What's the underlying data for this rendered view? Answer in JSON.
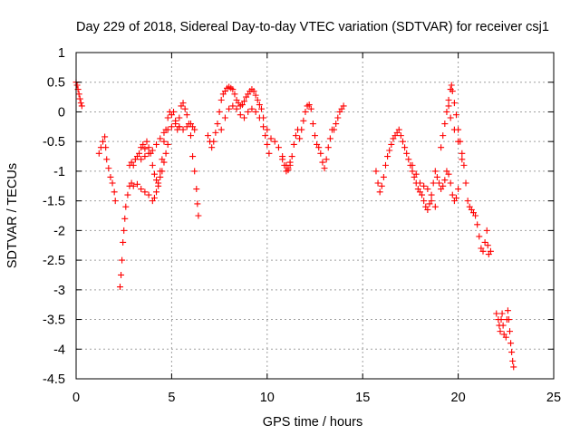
{
  "chart_data": {
    "type": "scatter",
    "title": "Day 229 of 2018, Sidereal Day-to-day VTEC variation (SDTVAR) for receiver csj1",
    "xlabel": "GPS time / hours",
    "ylabel": "SDTVAR / TECUs",
    "xlim": [
      0,
      25
    ],
    "ylim": [
      -4.5,
      1
    ],
    "xticks": [
      "0",
      "5",
      "10",
      "15",
      "20",
      "25"
    ],
    "yticks": [
      "1",
      "0.5",
      "0",
      "-0.5",
      "-1",
      "-1.5",
      "-2",
      "-2.5",
      "-3",
      "-3.5",
      "-4",
      "-4.5"
    ],
    "grid": true,
    "marker": "+",
    "color": "#ff0000",
    "series": [
      {
        "name": "SDTVAR",
        "points": [
          [
            0.0,
            0.5
          ],
          [
            0.05,
            0.45
          ],
          [
            0.1,
            0.38
          ],
          [
            0.15,
            0.3
          ],
          [
            0.2,
            0.22
          ],
          [
            0.25,
            0.15
          ],
          [
            0.3,
            0.1
          ],
          [
            1.2,
            -0.7
          ],
          [
            1.3,
            -0.6
          ],
          [
            1.4,
            -0.5
          ],
          [
            1.5,
            -0.42
          ],
          [
            1.55,
            -0.6
          ],
          [
            1.6,
            -0.8
          ],
          [
            1.7,
            -0.95
          ],
          [
            1.8,
            -1.1
          ],
          [
            1.9,
            -1.2
          ],
          [
            2.0,
            -1.35
          ],
          [
            2.05,
            -1.5
          ],
          [
            2.3,
            -2.95
          ],
          [
            2.35,
            -2.75
          ],
          [
            2.4,
            -2.5
          ],
          [
            2.45,
            -2.2
          ],
          [
            2.5,
            -2.0
          ],
          [
            2.55,
            -1.8
          ],
          [
            2.6,
            -1.6
          ],
          [
            2.7,
            -1.4
          ],
          [
            2.8,
            -1.25
          ],
          [
            2.9,
            -1.2
          ],
          [
            3.0,
            -1.25
          ],
          [
            3.2,
            -1.22
          ],
          [
            3.4,
            -1.3
          ],
          [
            3.6,
            -1.35
          ],
          [
            3.8,
            -1.4
          ],
          [
            4.0,
            -1.5
          ],
          [
            4.1,
            -1.45
          ],
          [
            4.2,
            -1.35
          ],
          [
            4.3,
            -1.25
          ],
          [
            4.4,
            -1.1
          ],
          [
            4.5,
            -1.0
          ],
          [
            4.6,
            -0.85
          ],
          [
            4.7,
            -0.7
          ],
          [
            4.8,
            -0.55
          ],
          [
            2.8,
            -0.9
          ],
          [
            2.9,
            -0.85
          ],
          [
            3.0,
            -0.9
          ],
          [
            3.1,
            -0.8
          ],
          [
            3.2,
            -0.75
          ],
          [
            3.3,
            -0.7
          ],
          [
            3.4,
            -0.6
          ],
          [
            3.5,
            -0.55
          ],
          [
            3.6,
            -0.62
          ],
          [
            3.7,
            -0.5
          ],
          [
            3.8,
            -0.6
          ],
          [
            3.9,
            -0.7
          ],
          [
            4.0,
            -0.9
          ],
          [
            4.1,
            -1.05
          ],
          [
            4.2,
            -1.15
          ],
          [
            4.3,
            -1.2
          ],
          [
            4.4,
            -1.0
          ],
          [
            4.5,
            -0.8
          ],
          [
            4.6,
            -0.5
          ],
          [
            4.7,
            -0.3
          ],
          [
            4.8,
            -0.1
          ],
          [
            4.9,
            0.0
          ],
          [
            5.0,
            -0.05
          ],
          [
            5.1,
            0.0
          ],
          [
            5.2,
            -0.15
          ],
          [
            5.3,
            -0.3
          ],
          [
            5.4,
            -0.25
          ],
          [
            3.4,
            -0.8
          ],
          [
            3.6,
            -0.75
          ],
          [
            3.8,
            -0.7
          ],
          [
            4.0,
            -0.65
          ],
          [
            4.2,
            -0.55
          ],
          [
            4.4,
            -0.45
          ],
          [
            4.6,
            -0.35
          ],
          [
            4.8,
            -0.3
          ],
          [
            5.0,
            -0.25
          ],
          [
            5.2,
            -0.2
          ],
          [
            5.4,
            -0.25
          ],
          [
            5.6,
            -0.3
          ],
          [
            5.8,
            -0.25
          ],
          [
            6.0,
            -0.2
          ],
          [
            6.1,
            -0.25
          ],
          [
            6.2,
            -0.3
          ],
          [
            5.4,
            -0.1
          ],
          [
            5.5,
            0.1
          ],
          [
            5.6,
            0.15
          ],
          [
            5.7,
            0.05
          ],
          [
            5.8,
            -0.05
          ],
          [
            5.9,
            -0.2
          ],
          [
            6.0,
            -0.4
          ],
          [
            6.1,
            -0.75
          ],
          [
            6.2,
            -1.0
          ],
          [
            6.3,
            -1.3
          ],
          [
            6.35,
            -1.55
          ],
          [
            6.4,
            -1.75
          ],
          [
            6.9,
            -0.4
          ],
          [
            7.0,
            -0.5
          ],
          [
            7.1,
            -0.6
          ],
          [
            7.2,
            -0.5
          ],
          [
            7.3,
            -0.35
          ],
          [
            7.4,
            -0.2
          ],
          [
            7.5,
            0.0
          ],
          [
            7.6,
            0.2
          ],
          [
            7.7,
            0.3
          ],
          [
            7.8,
            0.35
          ],
          [
            7.9,
            0.4
          ],
          [
            8.0,
            0.42
          ],
          [
            8.1,
            0.4
          ],
          [
            8.2,
            0.38
          ],
          [
            8.3,
            0.3
          ],
          [
            8.4,
            0.2
          ],
          [
            8.5,
            0.15
          ],
          [
            8.6,
            0.1
          ],
          [
            8.7,
            0.12
          ],
          [
            8.8,
            0.18
          ],
          [
            8.9,
            0.25
          ],
          [
            9.0,
            0.3
          ],
          [
            9.1,
            0.35
          ],
          [
            9.2,
            0.38
          ],
          [
            9.3,
            0.35
          ],
          [
            9.4,
            0.28
          ],
          [
            9.5,
            0.2
          ],
          [
            9.6,
            0.12
          ],
          [
            9.7,
            0.05
          ],
          [
            7.6,
            -0.3
          ],
          [
            7.8,
            -0.1
          ],
          [
            8.0,
            0.05
          ],
          [
            8.2,
            0.1
          ],
          [
            8.4,
            0.05
          ],
          [
            8.6,
            -0.05
          ],
          [
            8.8,
            -0.1
          ],
          [
            9.0,
            0.0
          ],
          [
            9.2,
            0.05
          ],
          [
            9.4,
            0.0
          ],
          [
            9.6,
            -0.1
          ],
          [
            9.8,
            -0.25
          ],
          [
            9.9,
            -0.4
          ],
          [
            10.0,
            -0.55
          ],
          [
            10.1,
            -0.7
          ],
          [
            9.8,
            -0.1
          ],
          [
            10.0,
            -0.3
          ],
          [
            10.2,
            -0.45
          ],
          [
            10.4,
            -0.5
          ],
          [
            10.6,
            -0.6
          ],
          [
            10.8,
            -0.75
          ],
          [
            11.0,
            -0.9
          ],
          [
            11.1,
            -0.98
          ],
          [
            11.2,
            -0.9
          ],
          [
            11.3,
            -0.75
          ],
          [
            11.4,
            -0.55
          ],
          [
            11.5,
            -0.4
          ],
          [
            11.6,
            -0.3
          ],
          [
            11.7,
            -0.45
          ],
          [
            11.8,
            -0.3
          ],
          [
            11.9,
            -0.15
          ],
          [
            12.0,
            0.0
          ],
          [
            12.1,
            0.1
          ],
          [
            12.2,
            0.12
          ],
          [
            12.3,
            0.05
          ],
          [
            10.8,
            -0.8
          ],
          [
            10.9,
            -0.9
          ],
          [
            11.0,
            -1.0
          ],
          [
            11.1,
            -0.95
          ],
          [
            11.2,
            -0.85
          ],
          [
            12.4,
            -0.2
          ],
          [
            12.5,
            -0.4
          ],
          [
            12.6,
            -0.55
          ],
          [
            12.7,
            -0.6
          ],
          [
            12.8,
            -0.7
          ],
          [
            12.9,
            -0.85
          ],
          [
            13.0,
            -0.95
          ],
          [
            13.1,
            -0.8
          ],
          [
            13.2,
            -0.6
          ],
          [
            13.3,
            -0.45
          ],
          [
            13.4,
            -0.3
          ],
          [
            13.5,
            -0.3
          ],
          [
            13.6,
            -0.2
          ],
          [
            13.7,
            -0.1
          ],
          [
            13.8,
            0.0
          ],
          [
            13.9,
            0.05
          ],
          [
            14.0,
            0.1
          ],
          [
            15.7,
            -1.0
          ],
          [
            15.8,
            -1.2
          ],
          [
            15.9,
            -1.35
          ],
          [
            16.0,
            -1.25
          ],
          [
            16.1,
            -1.1
          ],
          [
            16.2,
            -0.9
          ],
          [
            16.3,
            -0.75
          ],
          [
            16.4,
            -0.65
          ],
          [
            16.5,
            -0.55
          ],
          [
            16.6,
            -0.45
          ],
          [
            16.7,
            -0.4
          ],
          [
            16.8,
            -0.35
          ],
          [
            16.9,
            -0.3
          ],
          [
            17.0,
            -0.4
          ],
          [
            17.1,
            -0.5
          ],
          [
            17.2,
            -0.6
          ],
          [
            17.3,
            -0.7
          ],
          [
            17.4,
            -0.8
          ],
          [
            17.5,
            -0.9
          ],
          [
            17.6,
            -1.0
          ],
          [
            17.7,
            -1.1
          ],
          [
            17.8,
            -1.2
          ],
          [
            17.9,
            -1.3
          ],
          [
            18.0,
            -1.35
          ],
          [
            18.1,
            -1.4
          ],
          [
            18.2,
            -1.5
          ],
          [
            18.3,
            -1.6
          ],
          [
            18.4,
            -1.65
          ],
          [
            18.5,
            -1.55
          ],
          [
            18.6,
            -1.4
          ],
          [
            18.7,
            -1.2
          ],
          [
            18.8,
            -1.0
          ],
          [
            18.9,
            -1.1
          ],
          [
            19.0,
            -1.2
          ],
          [
            19.1,
            -1.3
          ],
          [
            19.2,
            -1.25
          ],
          [
            19.3,
            -1.15
          ],
          [
            19.4,
            -1.0
          ],
          [
            19.5,
            -1.05
          ],
          [
            19.6,
            -1.2
          ],
          [
            19.7,
            -1.4
          ],
          [
            19.8,
            -1.5
          ],
          [
            19.9,
            -1.45
          ],
          [
            20.0,
            -1.3
          ],
          [
            17.6,
            -0.9
          ],
          [
            17.8,
            -1.05
          ],
          [
            18.0,
            -1.2
          ],
          [
            18.2,
            -1.25
          ],
          [
            18.4,
            -1.3
          ],
          [
            18.6,
            -1.5
          ],
          [
            18.8,
            -1.6
          ],
          [
            19.1,
            -0.6
          ],
          [
            19.2,
            -0.4
          ],
          [
            19.3,
            -0.2
          ],
          [
            19.4,
            0.0
          ],
          [
            19.5,
            0.2
          ],
          [
            19.6,
            0.38
          ],
          [
            19.65,
            0.45
          ],
          [
            19.7,
            0.35
          ],
          [
            19.8,
            0.15
          ],
          [
            19.9,
            -0.05
          ],
          [
            20.0,
            -0.3
          ],
          [
            20.1,
            -0.5
          ],
          [
            20.2,
            -0.7
          ],
          [
            20.3,
            -0.9
          ],
          [
            20.4,
            -1.2
          ],
          [
            20.5,
            -1.5
          ],
          [
            20.6,
            -1.6
          ],
          [
            20.7,
            -1.65
          ],
          [
            20.8,
            -1.7
          ],
          [
            20.9,
            -1.75
          ],
          [
            21.0,
            -1.9
          ],
          [
            21.1,
            -2.1
          ],
          [
            21.2,
            -2.3
          ],
          [
            21.3,
            -2.35
          ],
          [
            21.4,
            -2.2
          ],
          [
            21.5,
            -2.0
          ],
          [
            21.55,
            -2.25
          ],
          [
            21.6,
            -2.4
          ],
          [
            21.7,
            -2.35
          ],
          [
            19.5,
            0.1
          ],
          [
            19.6,
            -0.1
          ],
          [
            19.8,
            -0.3
          ],
          [
            20.0,
            -0.5
          ],
          [
            20.2,
            -0.8
          ],
          [
            22.0,
            -3.4
          ],
          [
            22.1,
            -3.5
          ],
          [
            22.15,
            -3.6
          ],
          [
            22.2,
            -3.7
          ],
          [
            22.25,
            -3.5
          ],
          [
            22.3,
            -3.4
          ],
          [
            22.35,
            -3.6
          ],
          [
            22.4,
            -3.75
          ],
          [
            22.5,
            -3.8
          ],
          [
            22.55,
            -3.5
          ],
          [
            22.6,
            -3.35
          ],
          [
            22.65,
            -3.5
          ],
          [
            22.7,
            -3.7
          ],
          [
            22.75,
            -3.9
          ],
          [
            22.8,
            -4.05
          ],
          [
            22.85,
            -4.2
          ],
          [
            22.9,
            -4.3
          ]
        ]
      }
    ]
  }
}
